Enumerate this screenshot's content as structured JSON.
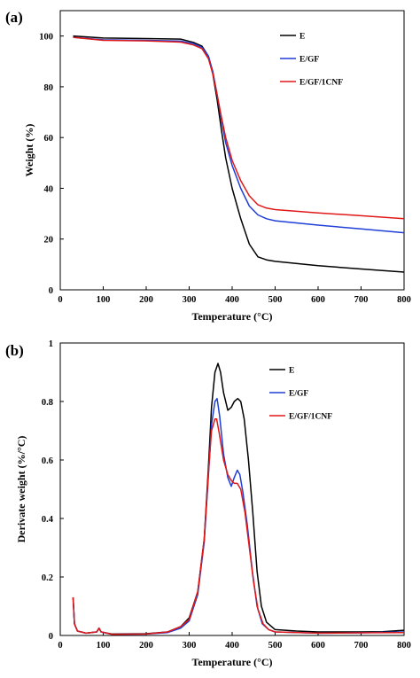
{
  "chart_data": [
    {
      "type": "line",
      "panel_label": "(a)",
      "xlabel": "Temperature (°C)",
      "ylabel": "Weight (%)",
      "xlim": [
        0,
        800
      ],
      "ylim": [
        0,
        110
      ],
      "xticks": [
        "0",
        "100",
        "200",
        "300",
        "400",
        "500",
        "600",
        "700",
        "800"
      ],
      "xtick_values": [
        0,
        100,
        200,
        300,
        400,
        500,
        600,
        700,
        800
      ],
      "yticks": [
        "0",
        "20",
        "40",
        "60",
        "80",
        "100"
      ],
      "ytick_values": [
        0,
        20,
        40,
        60,
        80,
        100
      ],
      "grid": false,
      "legend_position": "top-right",
      "series": [
        {
          "name": "E",
          "color": "#000000",
          "points": [
            [
              30,
              100
            ],
            [
              100,
              99.2
            ],
            [
              200,
              99
            ],
            [
              280,
              98.8
            ],
            [
              310,
              97.5
            ],
            [
              330,
              96
            ],
            [
              345,
              92
            ],
            [
              355,
              85
            ],
            [
              365,
              75
            ],
            [
              375,
              63
            ],
            [
              385,
              52
            ],
            [
              400,
              40
            ],
            [
              420,
              28
            ],
            [
              440,
              18
            ],
            [
              460,
              13
            ],
            [
              480,
              11.8
            ],
            [
              500,
              11.2
            ],
            [
              600,
              9.5
            ],
            [
              700,
              8.2
            ],
            [
              800,
              7
            ]
          ]
        },
        {
          "name": "E/GF",
          "color": "#1f3fd6",
          "points": [
            [
              30,
              99.5
            ],
            [
              100,
              98.5
            ],
            [
              200,
              98.3
            ],
            [
              280,
              98
            ],
            [
              310,
              97
            ],
            [
              330,
              95.5
            ],
            [
              345,
              92
            ],
            [
              355,
              86
            ],
            [
              365,
              77
            ],
            [
              375,
              67
            ],
            [
              385,
              58
            ],
            [
              400,
              49
            ],
            [
              420,
              40
            ],
            [
              440,
              33
            ],
            [
              460,
              29.5
            ],
            [
              480,
              28
            ],
            [
              500,
              27.2
            ],
            [
              600,
              25.5
            ],
            [
              700,
              24
            ],
            [
              800,
              22.5
            ]
          ]
        },
        {
          "name": "E/GF/1CNF",
          "color": "#e01818",
          "points": [
            [
              30,
              99.5
            ],
            [
              100,
              98.3
            ],
            [
              200,
              98.1
            ],
            [
              280,
              97.6
            ],
            [
              310,
              96.5
            ],
            [
              330,
              95
            ],
            [
              345,
              91
            ],
            [
              355,
              85
            ],
            [
              365,
              77
            ],
            [
              375,
              68
            ],
            [
              385,
              60
            ],
            [
              400,
              51
            ],
            [
              420,
              43
            ],
            [
              440,
              37
            ],
            [
              460,
              33.5
            ],
            [
              480,
              32.2
            ],
            [
              500,
              31.6
            ],
            [
              600,
              30.3
            ],
            [
              700,
              29.2
            ],
            [
              800,
              28
            ]
          ]
        }
      ]
    },
    {
      "type": "line",
      "panel_label": "(b)",
      "xlabel": "Temperature (°C)",
      "ylabel": "Derivate weight (%/°C)",
      "xlim": [
        0,
        800
      ],
      "ylim": [
        0,
        1
      ],
      "xticks": [
        "0",
        "100",
        "200",
        "300",
        "400",
        "500",
        "600",
        "700",
        "800"
      ],
      "xtick_values": [
        0,
        100,
        200,
        300,
        400,
        500,
        600,
        700,
        800
      ],
      "yticks": [
        "0",
        "0.2",
        "0.4",
        "0.6",
        "0.8",
        "1"
      ],
      "ytick_values": [
        0,
        0.2,
        0.4,
        0.6,
        0.8,
        1
      ],
      "grid": false,
      "legend_position": "top-right",
      "series": [
        {
          "name": "E",
          "color": "#000000",
          "points": [
            [
              30,
              0.13
            ],
            [
              33,
              0.04
            ],
            [
              40,
              0.015
            ],
            [
              60,
              0.008
            ],
            [
              85,
              0.012
            ],
            [
              90,
              0.025
            ],
            [
              95,
              0.012
            ],
            [
              120,
              0.005
            ],
            [
              200,
              0.006
            ],
            [
              250,
              0.012
            ],
            [
              280,
              0.03
            ],
            [
              300,
              0.06
            ],
            [
              320,
              0.15
            ],
            [
              335,
              0.33
            ],
            [
              345,
              0.58
            ],
            [
              352,
              0.78
            ],
            [
              360,
              0.9
            ],
            [
              367,
              0.93
            ],
            [
              373,
              0.9
            ],
            [
              380,
              0.83
            ],
            [
              390,
              0.77
            ],
            [
              398,
              0.78
            ],
            [
              405,
              0.8
            ],
            [
              413,
              0.81
            ],
            [
              420,
              0.8
            ],
            [
              428,
              0.74
            ],
            [
              438,
              0.6
            ],
            [
              448,
              0.42
            ],
            [
              458,
              0.22
            ],
            [
              468,
              0.1
            ],
            [
              480,
              0.045
            ],
            [
              500,
              0.02
            ],
            [
              550,
              0.015
            ],
            [
              600,
              0.012
            ],
            [
              650,
              0.012
            ],
            [
              700,
              0.012
            ],
            [
              750,
              0.013
            ],
            [
              800,
              0.018
            ]
          ]
        },
        {
          "name": "E/GF",
          "color": "#1f3fd6",
          "points": [
            [
              30,
              0.13
            ],
            [
              33,
              0.04
            ],
            [
              40,
              0.015
            ],
            [
              60,
              0.008
            ],
            [
              85,
              0.012
            ],
            [
              90,
              0.025
            ],
            [
              95,
              0.012
            ],
            [
              120,
              0.004
            ],
            [
              200,
              0.005
            ],
            [
              250,
              0.01
            ],
            [
              280,
              0.025
            ],
            [
              300,
              0.05
            ],
            [
              320,
              0.14
            ],
            [
              335,
              0.32
            ],
            [
              345,
              0.55
            ],
            [
              352,
              0.72
            ],
            [
              360,
              0.8
            ],
            [
              365,
              0.81
            ],
            [
              371,
              0.75
            ],
            [
              380,
              0.62
            ],
            [
              390,
              0.54
            ],
            [
              398,
              0.51
            ],
            [
              405,
              0.54
            ],
            [
              412,
              0.565
            ],
            [
              418,
              0.55
            ],
            [
              425,
              0.49
            ],
            [
              435,
              0.38
            ],
            [
              447,
              0.22
            ],
            [
              458,
              0.1
            ],
            [
              470,
              0.04
            ],
            [
              485,
              0.02
            ],
            [
              500,
              0.012
            ],
            [
              600,
              0.008
            ],
            [
              700,
              0.009
            ],
            [
              800,
              0.012
            ]
          ]
        },
        {
          "name": "E/GF/1CNF",
          "color": "#e01818",
          "points": [
            [
              30,
              0.13
            ],
            [
              33,
              0.04
            ],
            [
              40,
              0.015
            ],
            [
              60,
              0.008
            ],
            [
              85,
              0.012
            ],
            [
              90,
              0.025
            ],
            [
              95,
              0.012
            ],
            [
              120,
              0.004
            ],
            [
              200,
              0.005
            ],
            [
              250,
              0.012
            ],
            [
              280,
              0.03
            ],
            [
              300,
              0.055
            ],
            [
              320,
              0.15
            ],
            [
              335,
              0.33
            ],
            [
              345,
              0.56
            ],
            [
              352,
              0.7
            ],
            [
              360,
              0.74
            ],
            [
              364,
              0.74
            ],
            [
              370,
              0.69
            ],
            [
              380,
              0.6
            ],
            [
              390,
              0.55
            ],
            [
              398,
              0.53
            ],
            [
              405,
              0.52
            ],
            [
              412,
              0.52
            ],
            [
              420,
              0.5
            ],
            [
              430,
              0.42
            ],
            [
              440,
              0.3
            ],
            [
              450,
              0.18
            ],
            [
              460,
              0.09
            ],
            [
              472,
              0.04
            ],
            [
              485,
              0.02
            ],
            [
              500,
              0.012
            ],
            [
              600,
              0.008
            ],
            [
              700,
              0.009
            ],
            [
              800,
              0.01
            ]
          ]
        }
      ]
    }
  ]
}
